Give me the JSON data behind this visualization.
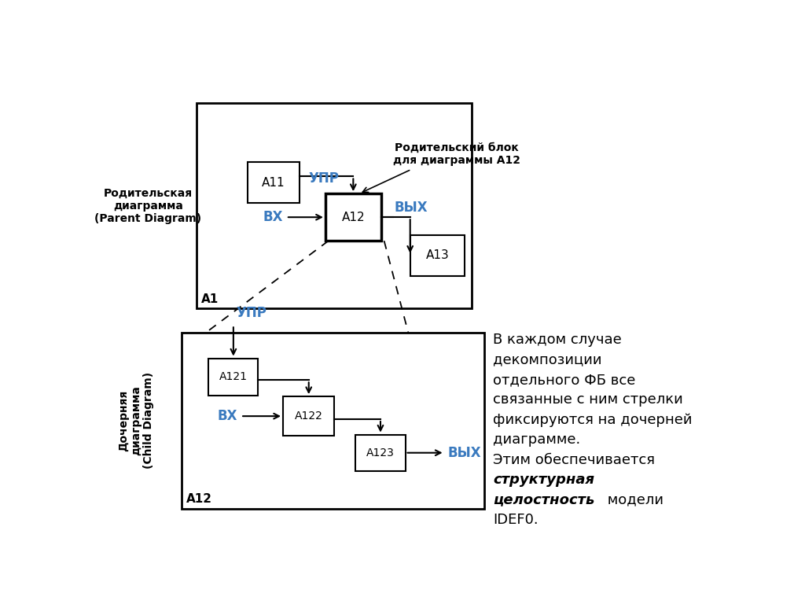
{
  "bg_color": "#ffffff",
  "black": "#000000",
  "blue": "#3a7abf",
  "parent_label": "Родительская\nдиаграмма\n(Parent Diagram)",
  "child_label": "Дочерняя\nдиаграмма\n(Child Diagram)",
  "parent_id": "А1",
  "child_id": "А12",
  "ref_label": "Родительский блок\nдля диаграммы А12",
  "note1": "В каждом случае",
  "note2": "декомпозиции",
  "note3": "отдельного ФБ все",
  "note4": "связанные с ним стрелки",
  "note5": "фиксируются на дочерней",
  "note6": "диаграмме.",
  "note7": "Этим обеспечивается",
  "bold1": "структурная",
  "bold2": "целостность",
  "note8": " модели",
  "note9": "IDEF0."
}
